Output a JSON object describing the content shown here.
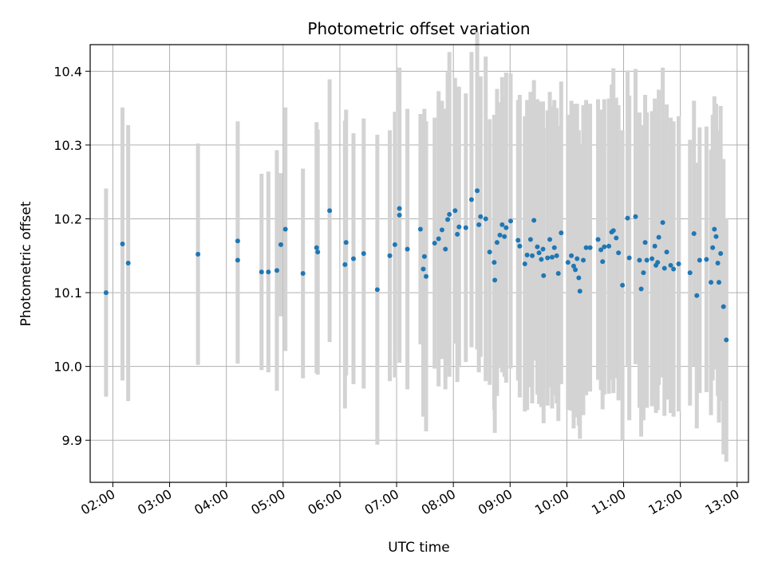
{
  "chart_data": {
    "type": "scatter",
    "title": "Photometric offset variation",
    "xlabel": "UTC time",
    "ylabel": "Photometric offset",
    "x_unit": "hours UTC",
    "xlim": [
      1.6,
      13.2
    ],
    "ylim": [
      9.843,
      10.436
    ],
    "x_ticks": [
      {
        "value": 2,
        "label": "02:00"
      },
      {
        "value": 3,
        "label": "03:00"
      },
      {
        "value": 4,
        "label": "04:00"
      },
      {
        "value": 5,
        "label": "05:00"
      },
      {
        "value": 6,
        "label": "06:00"
      },
      {
        "value": 7,
        "label": "07:00"
      },
      {
        "value": 8,
        "label": "08:00"
      },
      {
        "value": 9,
        "label": "09:00"
      },
      {
        "value": 10,
        "label": "10:00"
      },
      {
        "value": 11,
        "label": "11:00"
      },
      {
        "value": 12,
        "label": "12:00"
      },
      {
        "value": 13,
        "label": "13:00"
      }
    ],
    "y_ticks": [
      {
        "value": 9.9,
        "label": "9.9"
      },
      {
        "value": 10.0,
        "label": "10.0"
      },
      {
        "value": 10.1,
        "label": "10.1"
      },
      {
        "value": 10.2,
        "label": "10.2"
      },
      {
        "value": 10.3,
        "label": "10.3"
      },
      {
        "value": 10.4,
        "label": "10.4"
      }
    ],
    "grid": true,
    "marker_color": "#1f77b4",
    "errorbar_color": "#d3d3d3",
    "points": [
      [
        1.88,
        10.1,
        0.141
      ],
      [
        2.17,
        10.166,
        0.185
      ],
      [
        2.27,
        10.14,
        0.187
      ],
      [
        3.5,
        10.152,
        0.15
      ],
      [
        4.2,
        10.17,
        0.162
      ],
      [
        4.2,
        10.144,
        0.14
      ],
      [
        4.62,
        10.128,
        0.133
      ],
      [
        4.74,
        10.128,
        0.136
      ],
      [
        4.89,
        10.13,
        0.163
      ],
      [
        4.96,
        10.165,
        0.097
      ],
      [
        5.04,
        10.186,
        0.165
      ],
      [
        5.35,
        10.126,
        0.142
      ],
      [
        5.59,
        10.161,
        0.17
      ],
      [
        5.61,
        10.155,
        0.166
      ],
      [
        5.82,
        10.211,
        0.178
      ],
      [
        6.09,
        10.138,
        0.195
      ],
      [
        6.11,
        10.168,
        0.18
      ],
      [
        6.24,
        10.146,
        0.17
      ],
      [
        6.42,
        10.153,
        0.183
      ],
      [
        6.66,
        10.104,
        0.21
      ],
      [
        6.88,
        10.15,
        0.17
      ],
      [
        6.97,
        10.165,
        0.18
      ],
      [
        7.05,
        10.214,
        0.19
      ],
      [
        7.05,
        10.205,
        0.2
      ],
      [
        7.19,
        10.159,
        0.19
      ],
      [
        7.42,
        10.186,
        0.156
      ],
      [
        7.47,
        10.132,
        0.2
      ],
      [
        7.49,
        10.149,
        0.2
      ],
      [
        7.52,
        10.122,
        0.21
      ],
      [
        7.67,
        10.167,
        0.17
      ],
      [
        7.74,
        10.173,
        0.2
      ],
      [
        7.8,
        10.185,
        0.175
      ],
      [
        7.86,
        10.159,
        0.19
      ],
      [
        7.9,
        10.199,
        0.2
      ],
      [
        7.93,
        10.206,
        0.22
      ],
      [
        8.03,
        10.211,
        0.18
      ],
      [
        8.07,
        10.179,
        0.2
      ],
      [
        8.1,
        10.189,
        0.19
      ],
      [
        8.22,
        10.188,
        0.182
      ],
      [
        8.32,
        10.226,
        0.2
      ],
      [
        8.42,
        10.238,
        0.215
      ],
      [
        8.45,
        10.192,
        0.2
      ],
      [
        8.48,
        10.203,
        0.19
      ],
      [
        8.57,
        10.2,
        0.22
      ],
      [
        8.64,
        10.155,
        0.18
      ],
      [
        8.72,
        10.141,
        0.2
      ],
      [
        8.73,
        10.117,
        0.207
      ],
      [
        8.77,
        10.168,
        0.208
      ],
      [
        8.82,
        10.178,
        0.18
      ],
      [
        8.86,
        10.192,
        0.2
      ],
      [
        8.9,
        10.176,
        0.19
      ],
      [
        8.93,
        10.188,
        0.21
      ],
      [
        9.01,
        10.197,
        0.2
      ],
      [
        9.14,
        10.171,
        0.19
      ],
      [
        9.17,
        10.163,
        0.205
      ],
      [
        9.26,
        10.139,
        0.2
      ],
      [
        9.3,
        10.151,
        0.21
      ],
      [
        9.36,
        10.172,
        0.2
      ],
      [
        9.39,
        10.15,
        0.2
      ],
      [
        9.42,
        10.198,
        0.19
      ],
      [
        9.48,
        10.162,
        0.2
      ],
      [
        9.51,
        10.154,
        0.205
      ],
      [
        9.55,
        10.145,
        0.2
      ],
      [
        9.58,
        10.159,
        0.2
      ],
      [
        9.59,
        10.123,
        0.2
      ],
      [
        9.66,
        10.147,
        0.2
      ],
      [
        9.7,
        10.172,
        0.2
      ],
      [
        9.74,
        10.148,
        0.205
      ],
      [
        9.78,
        10.161,
        0.2
      ],
      [
        9.82,
        10.15,
        0.2
      ],
      [
        9.85,
        10.126,
        0.2
      ],
      [
        9.9,
        10.181,
        0.205
      ],
      [
        10.02,
        10.141,
        0.2
      ],
      [
        10.08,
        10.15,
        0.21
      ],
      [
        10.12,
        10.136,
        0.22
      ],
      [
        10.15,
        10.131,
        0.2
      ],
      [
        10.18,
        10.146,
        0.21
      ],
      [
        10.21,
        10.12,
        0.2
      ],
      [
        10.23,
        10.102,
        0.2
      ],
      [
        10.29,
        10.144,
        0.21
      ],
      [
        10.34,
        10.161,
        0.2
      ],
      [
        10.41,
        10.161,
        0.195
      ],
      [
        10.55,
        10.172,
        0.19
      ],
      [
        10.6,
        10.158,
        0.19
      ],
      [
        10.63,
        10.142,
        0.2
      ],
      [
        10.66,
        10.162,
        0.2
      ],
      [
        10.74,
        10.163,
        0.2
      ],
      [
        10.79,
        10.182,
        0.2
      ],
      [
        10.82,
        10.184,
        0.22
      ],
      [
        10.87,
        10.174,
        0.19
      ],
      [
        10.91,
        10.154,
        0.2
      ],
      [
        10.98,
        10.11,
        0.21
      ],
      [
        11.07,
        10.201,
        0.2
      ],
      [
        11.1,
        10.147,
        0.22
      ],
      [
        11.21,
        10.203,
        0.2
      ],
      [
        11.28,
        10.144,
        0.2
      ],
      [
        11.31,
        10.105,
        0.2
      ],
      [
        11.35,
        10.127,
        0.2
      ],
      [
        11.38,
        10.168,
        0.2
      ],
      [
        11.41,
        10.144,
        0.2
      ],
      [
        11.5,
        10.146,
        0.2
      ],
      [
        11.55,
        10.163,
        0.2
      ],
      [
        11.57,
        10.137,
        0.2
      ],
      [
        11.6,
        10.141,
        0.2
      ],
      [
        11.62,
        10.175,
        0.2
      ],
      [
        11.69,
        10.195,
        0.21
      ],
      [
        11.72,
        10.133,
        0.2
      ],
      [
        11.76,
        10.155,
        0.2
      ],
      [
        11.83,
        10.137,
        0.2
      ],
      [
        11.88,
        10.132,
        0.2
      ],
      [
        11.97,
        10.139,
        0.2
      ],
      [
        12.17,
        10.127,
        0.18
      ],
      [
        12.24,
        10.18,
        0.18
      ],
      [
        12.29,
        10.096,
        0.18
      ],
      [
        12.34,
        10.144,
        0.18
      ],
      [
        12.46,
        10.145,
        0.18
      ],
      [
        12.54,
        10.114,
        0.18
      ],
      [
        12.57,
        10.161,
        0.18
      ],
      [
        12.6,
        10.186,
        0.18
      ],
      [
        12.63,
        10.176,
        0.18
      ],
      [
        12.66,
        10.14,
        0.18
      ],
      [
        12.68,
        10.114,
        0.19
      ],
      [
        12.71,
        10.153,
        0.2
      ],
      [
        12.76,
        10.081,
        0.2
      ],
      [
        12.81,
        10.036,
        0.165
      ]
    ]
  }
}
